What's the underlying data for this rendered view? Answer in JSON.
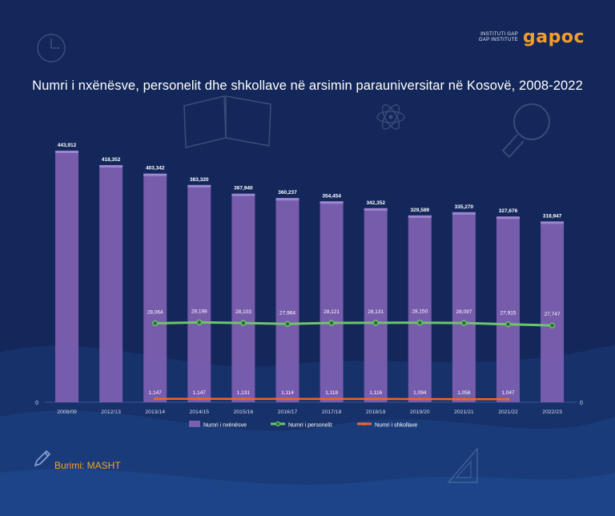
{
  "logo": {
    "line1": "INSTITUTI GAP",
    "line2": "GAP INSTITUTE",
    "wordmark": "gapoc"
  },
  "title": "Numri i nxënësve, personelit dhe shkollave në arsimin parauniversitar në Kosovë, 2008-2022",
  "source": "Burimi: MASHT",
  "colors": {
    "background": "#13275a",
    "bar": "#7b5fb0",
    "staff_line": "#6fc46b",
    "schools_line": "#f0652a",
    "accent": "#f5a623"
  },
  "icons": [
    "clock-icon",
    "book-icon",
    "atom-icon",
    "lightbulb-icon",
    "pencil-icon",
    "triangle-ruler-icon"
  ],
  "chart_data": {
    "type": "bar",
    "categories": [
      "2008/09",
      "2012/13",
      "2013/14",
      "2014/15",
      "2015/16",
      "2016/17",
      "2017/18",
      "2018/19",
      "2019/20",
      "2021/21",
      "2021/22",
      "2022/23"
    ],
    "series": [
      {
        "name": "Numri i nxënësve",
        "type": "bar",
        "values": [
          443912,
          418352,
          403342,
          383320,
          367940,
          360237,
          354454,
          342352,
          329589,
          335270,
          327676,
          318947
        ],
        "labels": [
          "443,912",
          "418,352",
          "403,342",
          "383,320",
          "367,940",
          "360,237",
          "354,454",
          "342,352",
          "329,589",
          "335,270",
          "327,676",
          "318,947"
        ]
      },
      {
        "name": "Numri i personelit",
        "type": "line",
        "values": [
          null,
          null,
          28064,
          28198,
          28103,
          27964,
          28121,
          28131,
          28150,
          28097,
          27915,
          27747
        ],
        "labels": [
          "",
          "",
          "28,064",
          "28,198",
          "28,103",
          "27,964",
          "28,121",
          "28,131",
          "28,150",
          "28,097",
          "27,915",
          "27,747"
        ]
      },
      {
        "name": "Numri i shkollave",
        "type": "line",
        "values": [
          null,
          null,
          1147,
          1147,
          1131,
          1114,
          1118,
          1116,
          1094,
          1058,
          1047,
          null
        ],
        "labels": [
          "",
          "",
          "1,147",
          "1,147",
          "1,131",
          "1,114",
          "1,118",
          "1,116",
          "1,094",
          "1,058",
          "1,047",
          ""
        ]
      }
    ],
    "y_left_zero_label": "0",
    "y_right_zero_label": "0",
    "legend_position": "bottom",
    "grid": false
  }
}
